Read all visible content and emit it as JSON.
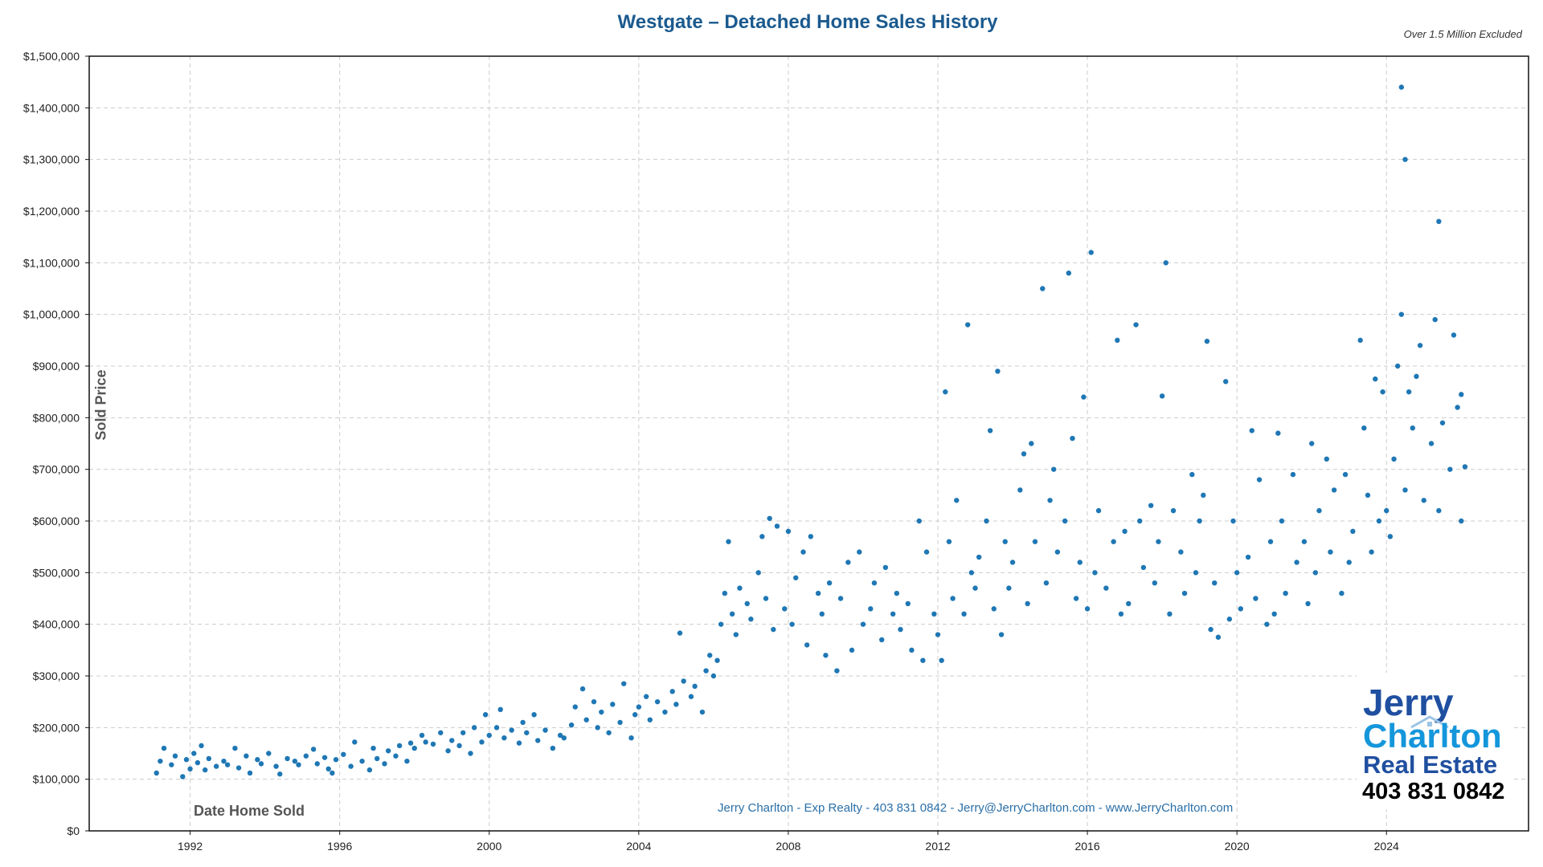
{
  "chart_data": {
    "type": "scatter",
    "title": "Westgate – Detached Home Sales History",
    "subtitle": "Over 1.5 Million Excluded",
    "xlabel": "Date Home Sold",
    "ylabel": "Sold Price",
    "xlim": [
      1989.3,
      2027.8
    ],
    "ylim": [
      0,
      1500000
    ],
    "grid": true,
    "x_ticks": [
      1992,
      1996,
      2000,
      2004,
      2008,
      2012,
      2016,
      2020,
      2024
    ],
    "y_ticks": [
      0,
      100000,
      200000,
      300000,
      400000,
      500000,
      600000,
      700000,
      800000,
      900000,
      1000000,
      1100000,
      1200000,
      1300000,
      1400000,
      1500000
    ],
    "y_tick_labels": [
      "$0",
      "$100,000",
      "$200,000",
      "$300,000",
      "$400,000",
      "$500,000",
      "$600,000",
      "$700,000",
      "$800,000",
      "$900,000",
      "$1,000,000",
      "$1,100,000",
      "$1,200,000",
      "$1,300,000",
      "$1,400,000",
      "$1,500,000"
    ],
    "marker_color": "#1f77b4",
    "points": [
      [
        1991.1,
        112000
      ],
      [
        1991.2,
        135000
      ],
      [
        1991.3,
        160000
      ],
      [
        1991.5,
        128000
      ],
      [
        1991.6,
        145000
      ],
      [
        1991.8,
        105000
      ],
      [
        1991.9,
        138000
      ],
      [
        1992.0,
        120000
      ],
      [
        1992.1,
        150000
      ],
      [
        1992.2,
        132000
      ],
      [
        1992.3,
        165000
      ],
      [
        1992.4,
        118000
      ],
      [
        1992.5,
        140000
      ],
      [
        1992.7,
        125000
      ],
      [
        1992.9,
        135000
      ],
      [
        1993.0,
        128000
      ],
      [
        1993.2,
        160000
      ],
      [
        1993.3,
        122000
      ],
      [
        1993.5,
        145000
      ],
      [
        1993.6,
        112000
      ],
      [
        1993.8,
        138000
      ],
      [
        1993.9,
        130000
      ],
      [
        1994.1,
        150000
      ],
      [
        1994.3,
        125000
      ],
      [
        1994.4,
        110000
      ],
      [
        1994.6,
        140000
      ],
      [
        1994.8,
        135000
      ],
      [
        1994.9,
        128000
      ],
      [
        1995.1,
        145000
      ],
      [
        1995.3,
        158000
      ],
      [
        1995.4,
        130000
      ],
      [
        1995.6,
        142000
      ],
      [
        1995.7,
        120000
      ],
      [
        1995.8,
        112000
      ],
      [
        1995.9,
        138000
      ],
      [
        1996.1,
        148000
      ],
      [
        1996.3,
        125000
      ],
      [
        1996.4,
        172000
      ],
      [
        1996.6,
        135000
      ],
      [
        1996.8,
        118000
      ],
      [
        1996.9,
        160000
      ],
      [
        1997.0,
        140000
      ],
      [
        1997.2,
        130000
      ],
      [
        1997.3,
        155000
      ],
      [
        1997.5,
        145000
      ],
      [
        1997.6,
        165000
      ],
      [
        1997.8,
        135000
      ],
      [
        1997.9,
        170000
      ],
      [
        1998.0,
        160000
      ],
      [
        1998.2,
        185000
      ],
      [
        1998.3,
        172000
      ],
      [
        1998.5,
        168000
      ],
      [
        1998.7,
        190000
      ],
      [
        1998.9,
        155000
      ],
      [
        1999.0,
        175000
      ],
      [
        1999.2,
        165000
      ],
      [
        1999.3,
        190000
      ],
      [
        1999.5,
        150000
      ],
      [
        1999.6,
        200000
      ],
      [
        1999.8,
        172000
      ],
      [
        1999.9,
        225000
      ],
      [
        2000.0,
        185000
      ],
      [
        2000.2,
        200000
      ],
      [
        2000.3,
        235000
      ],
      [
        2000.4,
        180000
      ],
      [
        2000.6,
        195000
      ],
      [
        2000.8,
        170000
      ],
      [
        2000.9,
        210000
      ],
      [
        2001.0,
        190000
      ],
      [
        2001.2,
        225000
      ],
      [
        2001.3,
        175000
      ],
      [
        2001.5,
        195000
      ],
      [
        2001.7,
        160000
      ],
      [
        2001.9,
        185000
      ],
      [
        2002.0,
        180000
      ],
      [
        2002.2,
        205000
      ],
      [
        2002.3,
        240000
      ],
      [
        2002.5,
        275000
      ],
      [
        2002.6,
        215000
      ],
      [
        2002.8,
        250000
      ],
      [
        2002.9,
        200000
      ],
      [
        2003.0,
        230000
      ],
      [
        2003.2,
        190000
      ],
      [
        2003.3,
        245000
      ],
      [
        2003.5,
        210000
      ],
      [
        2003.6,
        285000
      ],
      [
        2003.8,
        180000
      ],
      [
        2003.9,
        225000
      ],
      [
        2004.0,
        240000
      ],
      [
        2004.2,
        260000
      ],
      [
        2004.3,
        215000
      ],
      [
        2004.5,
        250000
      ],
      [
        2004.7,
        230000
      ],
      [
        2004.9,
        270000
      ],
      [
        2005.0,
        245000
      ],
      [
        2005.1,
        383000
      ],
      [
        2005.2,
        290000
      ],
      [
        2005.4,
        260000
      ],
      [
        2005.5,
        280000
      ],
      [
        2005.7,
        230000
      ],
      [
        2005.8,
        310000
      ],
      [
        2005.9,
        340000
      ],
      [
        2006.0,
        300000
      ],
      [
        2006.1,
        330000
      ],
      [
        2006.2,
        400000
      ],
      [
        2006.3,
        460000
      ],
      [
        2006.4,
        560000
      ],
      [
        2006.5,
        420000
      ],
      [
        2006.6,
        380000
      ],
      [
        2006.7,
        470000
      ],
      [
        2006.9,
        440000
      ],
      [
        2007.0,
        410000
      ],
      [
        2007.2,
        500000
      ],
      [
        2007.3,
        570000
      ],
      [
        2007.4,
        450000
      ],
      [
        2007.5,
        605000
      ],
      [
        2007.6,
        390000
      ],
      [
        2007.7,
        590000
      ],
      [
        2007.9,
        430000
      ],
      [
        2008.0,
        580000
      ],
      [
        2008.1,
        400000
      ],
      [
        2008.2,
        490000
      ],
      [
        2008.4,
        540000
      ],
      [
        2008.5,
        360000
      ],
      [
        2008.6,
        570000
      ],
      [
        2008.8,
        460000
      ],
      [
        2008.9,
        420000
      ],
      [
        2009.0,
        340000
      ],
      [
        2009.1,
        480000
      ],
      [
        2009.3,
        310000
      ],
      [
        2009.4,
        450000
      ],
      [
        2009.6,
        520000
      ],
      [
        2009.7,
        350000
      ],
      [
        2009.9,
        540000
      ],
      [
        2010.0,
        400000
      ],
      [
        2010.2,
        430000
      ],
      [
        2010.3,
        480000
      ],
      [
        2010.5,
        370000
      ],
      [
        2010.6,
        510000
      ],
      [
        2010.8,
        420000
      ],
      [
        2010.9,
        460000
      ],
      [
        2011.0,
        390000
      ],
      [
        2011.2,
        440000
      ],
      [
        2011.3,
        350000
      ],
      [
        2011.5,
        600000
      ],
      [
        2011.6,
        330000
      ],
      [
        2011.7,
        540000
      ],
      [
        2011.9,
        420000
      ],
      [
        2012.0,
        380000
      ],
      [
        2012.1,
        330000
      ],
      [
        2012.2,
        850000
      ],
      [
        2012.3,
        560000
      ],
      [
        2012.4,
        450000
      ],
      [
        2012.5,
        640000
      ],
      [
        2012.7,
        420000
      ],
      [
        2012.8,
        980000
      ],
      [
        2012.9,
        500000
      ],
      [
        2013.0,
        470000
      ],
      [
        2013.1,
        530000
      ],
      [
        2013.3,
        600000
      ],
      [
        2013.4,
        775000
      ],
      [
        2013.5,
        430000
      ],
      [
        2013.6,
        890000
      ],
      [
        2013.7,
        380000
      ],
      [
        2013.8,
        560000
      ],
      [
        2013.9,
        470000
      ],
      [
        2014.0,
        520000
      ],
      [
        2014.2,
        660000
      ],
      [
        2014.3,
        730000
      ],
      [
        2014.4,
        440000
      ],
      [
        2014.5,
        750000
      ],
      [
        2014.6,
        560000
      ],
      [
        2014.8,
        1050000
      ],
      [
        2014.9,
        480000
      ],
      [
        2015.0,
        640000
      ],
      [
        2015.1,
        700000
      ],
      [
        2015.2,
        540000
      ],
      [
        2015.4,
        600000
      ],
      [
        2015.5,
        1080000
      ],
      [
        2015.6,
        760000
      ],
      [
        2015.7,
        450000
      ],
      [
        2015.8,
        520000
      ],
      [
        2015.9,
        840000
      ],
      [
        2016.0,
        430000
      ],
      [
        2016.1,
        1120000
      ],
      [
        2016.2,
        500000
      ],
      [
        2016.3,
        620000
      ],
      [
        2016.5,
        470000
      ],
      [
        2016.7,
        560000
      ],
      [
        2016.8,
        950000
      ],
      [
        2016.9,
        420000
      ],
      [
        2017.0,
        580000
      ],
      [
        2017.1,
        440000
      ],
      [
        2017.3,
        980000
      ],
      [
        2017.4,
        600000
      ],
      [
        2017.5,
        510000
      ],
      [
        2017.7,
        630000
      ],
      [
        2017.8,
        480000
      ],
      [
        2017.9,
        560000
      ],
      [
        2018.0,
        842000
      ],
      [
        2018.1,
        1100000
      ],
      [
        2018.2,
        420000
      ],
      [
        2018.3,
        620000
      ],
      [
        2018.5,
        540000
      ],
      [
        2018.6,
        460000
      ],
      [
        2018.8,
        690000
      ],
      [
        2018.9,
        500000
      ],
      [
        2019.0,
        600000
      ],
      [
        2019.1,
        650000
      ],
      [
        2019.2,
        948000
      ],
      [
        2019.3,
        390000
      ],
      [
        2019.4,
        480000
      ],
      [
        2019.5,
        375000
      ],
      [
        2019.7,
        870000
      ],
      [
        2019.8,
        410000
      ],
      [
        2019.9,
        600000
      ],
      [
        2020.0,
        500000
      ],
      [
        2020.1,
        430000
      ],
      [
        2020.3,
        530000
      ],
      [
        2020.4,
        775000
      ],
      [
        2020.5,
        450000
      ],
      [
        2020.6,
        680000
      ],
      [
        2020.8,
        400000
      ],
      [
        2020.9,
        560000
      ],
      [
        2021.0,
        420000
      ],
      [
        2021.1,
        770000
      ],
      [
        2021.2,
        600000
      ],
      [
        2021.3,
        460000
      ],
      [
        2021.5,
        690000
      ],
      [
        2021.6,
        520000
      ],
      [
        2021.8,
        560000
      ],
      [
        2021.9,
        440000
      ],
      [
        2022.0,
        750000
      ],
      [
        2022.1,
        500000
      ],
      [
        2022.2,
        620000
      ],
      [
        2022.4,
        720000
      ],
      [
        2022.5,
        540000
      ],
      [
        2022.6,
        660000
      ],
      [
        2022.8,
        460000
      ],
      [
        2022.9,
        690000
      ],
      [
        2023.0,
        520000
      ],
      [
        2023.1,
        580000
      ],
      [
        2023.3,
        950000
      ],
      [
        2023.4,
        780000
      ],
      [
        2023.5,
        650000
      ],
      [
        2023.6,
        540000
      ],
      [
        2023.7,
        875000
      ],
      [
        2023.8,
        600000
      ],
      [
        2023.9,
        850000
      ],
      [
        2024.0,
        620000
      ],
      [
        2024.1,
        570000
      ],
      [
        2024.2,
        720000
      ],
      [
        2024.3,
        900000
      ],
      [
        2024.4,
        1440000
      ],
      [
        2024.4,
        1000000
      ],
      [
        2024.5,
        1300000
      ],
      [
        2024.5,
        660000
      ],
      [
        2024.6,
        850000
      ],
      [
        2024.7,
        780000
      ],
      [
        2024.8,
        880000
      ],
      [
        2024.9,
        940000
      ],
      [
        2025.0,
        640000
      ],
      [
        2025.2,
        750000
      ],
      [
        2025.3,
        990000
      ],
      [
        2025.4,
        1180000
      ],
      [
        2025.4,
        620000
      ],
      [
        2025.5,
        790000
      ],
      [
        2025.7,
        700000
      ],
      [
        2025.8,
        960000
      ],
      [
        2025.9,
        820000
      ],
      [
        2026.0,
        845000
      ],
      [
        2026.0,
        600000
      ],
      [
        2026.1,
        705000
      ]
    ]
  },
  "footer": "Jerry Charlton - Exp Realty - 403 831 0842 - Jerry@JerryCharlton.com - www.JerryCharlton.com",
  "logo": {
    "line1": "Jerry",
    "line2": "Charlton",
    "line3": "Real Estate",
    "phone": "403 831 0842",
    "colors": {
      "dark_blue": "#1f4fa0",
      "light_blue": "#1496db"
    }
  }
}
